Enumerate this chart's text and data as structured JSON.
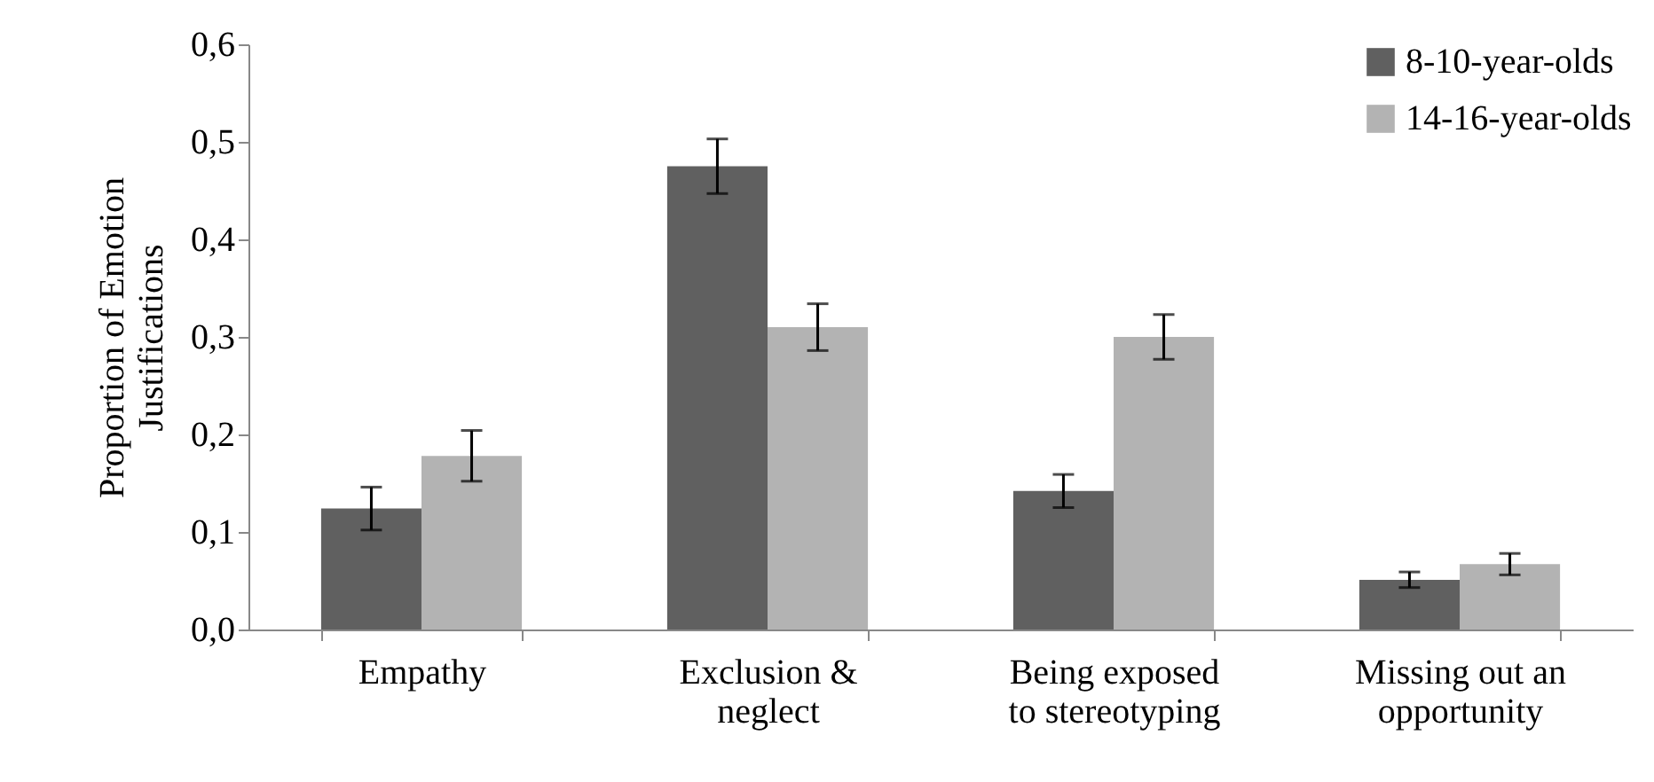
{
  "chart_data": {
    "type": "bar",
    "ylabel": "Proportion of Emotion Justifications",
    "categories": [
      "Empathy",
      "Exclusion & neglect",
      "Being exposed to stereotyping",
      "Missing out an opportunity"
    ],
    "series": [
      {
        "name": "8-10-year-olds",
        "color": "#606060",
        "values": [
          0.124,
          0.475,
          0.142,
          0.051
        ],
        "errors": [
          0.022,
          0.028,
          0.017,
          0.008
        ]
      },
      {
        "name": "14-16-year-olds",
        "color": "#b3b3b3",
        "values": [
          0.178,
          0.31,
          0.3,
          0.067
        ],
        "errors": [
          0.026,
          0.024,
          0.023,
          0.011
        ]
      }
    ],
    "ylim": [
      0,
      0.6
    ],
    "yticks": [
      {
        "value": 0,
        "label": "0,0"
      },
      {
        "value": 0.1,
        "label": "0,1"
      },
      {
        "value": 0.2,
        "label": "0,2"
      },
      {
        "value": 0.3,
        "label": "0,3"
      },
      {
        "value": 0.4,
        "label": "0,4"
      },
      {
        "value": 0.5,
        "label": "0,5"
      },
      {
        "value": 0.6,
        "label": "0,6"
      }
    ],
    "grid": false,
    "legend": "top right"
  }
}
